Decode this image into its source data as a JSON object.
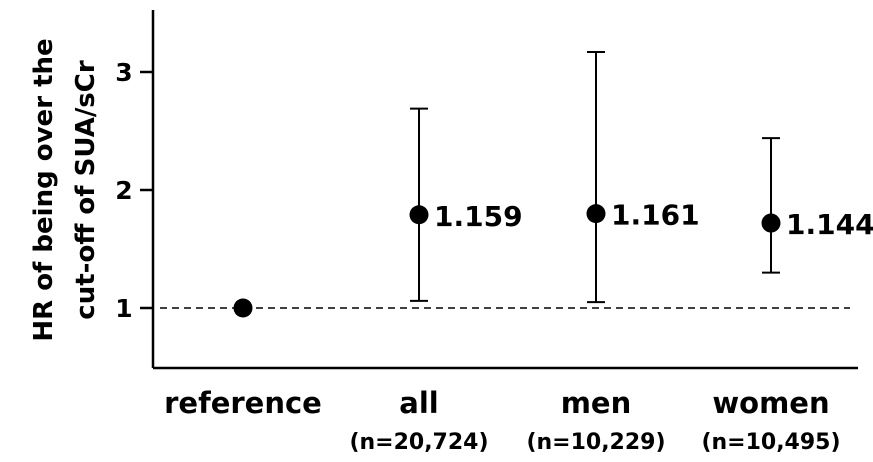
{
  "chart_data": {
    "type": "scatter",
    "ylabel_lines": [
      "HR of being over the",
      "cut-off of  SUA/sCr"
    ],
    "yticks": [
      "1",
      "2",
      "3"
    ],
    "ylim": [
      0.6,
      3.5
    ],
    "reference_line": 1,
    "points": [
      {
        "category": "reference",
        "n": "",
        "hr": 1.0,
        "lower": null,
        "upper": null,
        "label": ""
      },
      {
        "category": "all",
        "n": "(n=20,724)",
        "hr": 1.79,
        "lower": 1.06,
        "upper": 2.69,
        "label": "1.159"
      },
      {
        "category": "men",
        "n": "(n=10,229)",
        "hr": 1.8,
        "lower": 1.05,
        "upper": 3.17,
        "label": "1.161"
      },
      {
        "category": "women",
        "n": "(n=10,495)",
        "hr": 1.72,
        "lower": 1.3,
        "upper": 2.44,
        "label": "1.144"
      }
    ]
  }
}
